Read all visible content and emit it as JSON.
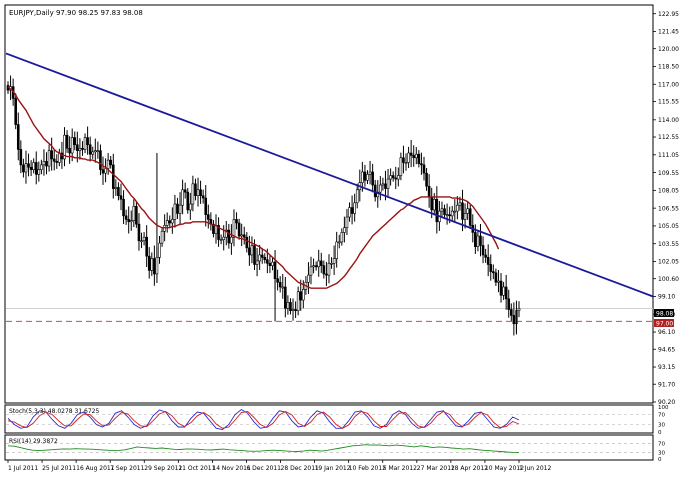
{
  "chart_data": [
    {
      "type": "candlestick",
      "title": "EURJPY,Daily  97.90 98.25 97.83 98.08",
      "price_ticks": [
        "122.95",
        "121.45",
        "120.00",
        "118.50",
        "117.00",
        "115.55",
        "114.00",
        "112.55",
        "111.05",
        "109.55",
        "108.05",
        "106.55",
        "105.05",
        "103.55",
        "102.05",
        "100.60",
        "99.10",
        "97.60",
        "96.10",
        "94.65",
        "93.15",
        "91.70",
        "90.20"
      ],
      "ylim": [
        90.2,
        123.6
      ],
      "date_ticks": [
        "1 Jul 2011",
        "25 Jul 2011",
        "16 Aug 2011",
        "7 Sep 2011",
        "29 Sep 2011",
        "21 Oct 2011",
        "14 Nov 2011",
        "6 Dec 2011",
        "28 Dec 2011",
        "19 Jan 2012",
        "10 Feb 2012",
        "5 Mar 2012",
        "27 Mar 2012",
        "18 Apr 2012",
        "10 May 2012",
        "1 Jun 2012"
      ],
      "current_price_label": "98.08",
      "current_price": 98.08,
      "support_label": "97.00",
      "support_level": 97.0,
      "close_series": [
        116.5,
        116.8,
        115.8,
        113.6,
        111.5,
        110.2,
        109.6,
        110.3,
        110.0,
        109.8,
        110.4,
        109.4,
        109.8,
        110.2,
        110.5,
        110.1,
        111.4,
        110.7,
        110.5,
        110.4,
        111.2,
        110.7,
        112.7,
        111.6,
        111.2,
        112.5,
        111.9,
        111.4,
        111.6,
        111.5,
        112.5,
        111.9,
        111.1,
        111.3,
        111.4,
        111.4,
        109.8,
        109.5,
        109.9,
        110.6,
        110.2,
        108.2,
        108.3,
        107.6,
        107.3,
        105.9,
        105.6,
        105.4,
        105.5,
        106.7,
        105.2,
        103.8,
        103.8,
        104.1,
        102.5,
        101.3,
        102.3,
        101.0,
        102.4,
        103.6,
        104.6,
        105.1,
        105.5,
        105.3,
        105.6,
        106.9,
        106.1,
        106.8,
        108.1,
        107.9,
        106.4,
        106.9,
        108.6,
        107.6,
        108.1,
        107.6,
        107.4,
        106.0,
        105.6,
        105.2,
        104.4,
        105.1,
        103.9,
        103.9,
        104.1,
        104.7,
        103.6,
        104.1,
        105.6,
        105.3,
        104.2,
        104.3,
        104.1,
        103.2,
        102.6,
        103.4,
        101.8,
        102.1,
        102.6,
        102.4,
        102.2,
        101.9,
        101.7,
        102.0,
        100.6,
        100.3,
        99.9,
        99.9,
        98.1,
        98.6,
        97.9,
        98.0,
        97.9,
        99.5,
        98.8,
        99.7,
        100.3,
        100.9,
        101.6,
        101.7,
        101.6,
        102.1,
        101.7,
        101.0,
        100.9,
        101.9,
        101.9,
        102.3,
        103.7,
        103.7,
        104.5,
        104.9,
        105.8,
        106.6,
        106.1,
        107.0,
        108.1,
        108.7,
        109.6,
        108.9,
        109.4,
        109.6,
        108.5,
        107.5,
        107.9,
        108.5,
        108.6,
        108.2,
        109.0,
        109.3,
        109.1,
        109.0,
        109.3,
        110.8,
        110.4,
        110.4,
        111.2,
        111.0,
        110.8,
        111.1,
        110.3,
        110.2,
        109.5,
        108.4,
        107.5,
        106.4,
        107.3,
        105.4,
        106.3,
        106.5,
        106.0,
        106.0,
        105.9,
        106.3,
        106.3,
        106.8,
        107.0,
        105.6,
        106.1,
        106.5,
        105.1,
        104.5,
        103.3,
        104.2,
        103.4,
        102.6,
        102.4,
        101.8,
        101.2,
        101.1,
        100.3,
        100.4,
        99.2,
        99.9,
        98.9,
        98.0,
        97.5,
        96.8,
        97.9,
        98.1
      ],
      "ma_series": [
        116.8,
        116.6,
        116.4,
        116.1,
        115.7,
        115.4,
        115.1,
        114.8,
        114.4,
        114.0,
        113.6,
        113.3,
        113.0,
        112.7,
        112.4,
        112.2,
        112.0,
        111.8,
        111.5,
        111.3,
        111.2,
        111.0,
        111.0,
        110.9,
        110.9,
        110.9,
        110.8,
        110.8,
        110.8,
        110.7,
        110.7,
        110.6,
        110.6,
        110.6,
        110.5,
        110.4,
        110.3,
        110.1,
        110.0,
        109.8,
        109.6,
        109.4,
        109.2,
        109.0,
        108.8,
        108.5,
        108.2,
        107.9,
        107.6,
        107.4,
        107.1,
        106.8,
        106.5,
        106.3,
        106.0,
        105.7,
        105.5,
        105.3,
        105.1,
        105.0,
        104.9,
        104.9,
        104.9,
        104.9,
        105.0,
        105.0,
        105.1,
        105.2,
        105.2,
        105.3,
        105.3,
        105.3,
        105.4,
        105.4,
        105.4,
        105.4,
        105.4,
        105.4,
        105.3,
        105.2,
        105.1,
        105.1,
        104.9,
        104.8,
        104.7,
        104.6,
        104.4,
        104.3,
        104.2,
        104.1,
        104.0,
        104.0,
        103.9,
        103.8,
        103.7,
        103.6,
        103.5,
        103.4,
        103.3,
        103.1,
        103.0,
        102.8,
        102.6,
        102.4,
        102.2,
        102.0,
        101.8,
        101.6,
        101.3,
        101.1,
        100.9,
        100.7,
        100.5,
        100.3,
        100.2,
        100.1,
        100.0,
        99.9,
        99.8,
        99.8,
        99.8,
        99.8,
        99.8,
        99.8,
        99.8,
        99.9,
        100.0,
        100.1,
        100.2,
        100.4,
        100.6,
        100.8,
        101.1,
        101.4,
        101.7,
        102.0,
        102.3,
        102.7,
        103.0,
        103.3,
        103.6,
        103.9,
        104.2,
        104.4,
        104.6,
        104.8,
        105.0,
        105.2,
        105.4,
        105.6,
        105.8,
        106.0,
        106.2,
        106.4,
        106.5,
        106.7,
        106.9,
        107.0,
        107.2,
        107.3,
        107.4,
        107.5,
        107.5,
        107.5,
        107.5,
        107.5,
        107.5,
        107.5,
        107.5,
        107.5,
        107.5,
        107.5,
        107.5,
        107.4,
        107.4,
        107.4,
        107.3,
        107.3,
        107.2,
        107.1,
        106.9,
        106.7,
        106.4,
        106.1,
        105.8,
        105.5,
        105.2,
        104.8,
        104.4,
        104.0,
        103.6,
        103.1
      ],
      "trendline": {
        "start": {
          "date": "1 Jul 2011",
          "price": 119.6
        },
        "end": {
          "date": "1 Jun 2012",
          "price": 99.1
        }
      }
    },
    {
      "type": "line",
      "title": "Stoch(5,3,3) 48.0278 31.6725",
      "levels": [
        "100",
        "70",
        "30",
        "0"
      ],
      "ylim": [
        0,
        100
      ],
      "series": [
        {
          "values": [
            55,
            30,
            15,
            20,
            60,
            85,
            80,
            50,
            25,
            15,
            35,
            70,
            80,
            60,
            30,
            20,
            35,
            75,
            85,
            60,
            30,
            15,
            25,
            65,
            88,
            80,
            45,
            20,
            20,
            55,
            80,
            75,
            45,
            15,
            10,
            30,
            70,
            90,
            75,
            40,
            15,
            20,
            55,
            85,
            80,
            45,
            20,
            25,
            60,
            85,
            75,
            40,
            15,
            15,
            45,
            80,
            85,
            60,
            25,
            15,
            30,
            70,
            85,
            70,
            35,
            15,
            20,
            50,
            80,
            85,
            55,
            25,
            20,
            45,
            75,
            80,
            50,
            20,
            15,
            30,
            60,
            48
          ]
        },
        {
          "values": [
            45,
            40,
            25,
            18,
            35,
            65,
            80,
            70,
            45,
            25,
            25,
            50,
            72,
            70,
            45,
            25,
            28,
            55,
            78,
            72,
            45,
            25,
            22,
            45,
            72,
            82,
            65,
            35,
            22,
            38,
            65,
            78,
            62,
            32,
            15,
            20,
            48,
            78,
            82,
            58,
            30,
            18,
            35,
            68,
            82,
            68,
            35,
            22,
            40,
            70,
            80,
            60,
            30,
            15,
            28,
            62,
            82,
            75,
            45,
            22,
            22,
            50,
            75,
            78,
            52,
            25,
            18,
            35,
            65,
            82,
            70,
            40,
            22,
            32,
            58,
            78,
            68,
            38,
            18,
            22,
            42,
            32
          ]
        }
      ]
    },
    {
      "type": "line",
      "title": "RSI(14) 29.3872",
      "levels": [
        "70",
        "30",
        "0"
      ],
      "ylim": [
        0,
        100
      ],
      "series": [
        {
          "values": [
            60,
            58,
            52,
            45,
            40,
            38,
            40,
            42,
            44,
            46,
            45,
            47,
            46,
            45,
            44,
            42,
            40,
            38,
            39,
            42,
            48,
            55,
            52,
            50,
            48,
            50,
            47,
            44,
            43,
            46,
            45,
            44,
            42,
            41,
            43,
            45,
            42,
            40,
            38,
            36,
            35,
            36,
            38,
            40,
            39,
            37,
            35,
            34,
            36,
            40,
            38,
            36,
            40,
            45,
            50,
            55,
            60,
            62,
            65,
            63,
            64,
            62,
            60,
            63,
            61,
            58,
            55,
            60,
            57,
            52,
            55,
            53,
            50,
            48,
            45,
            47,
            43,
            40,
            38,
            36,
            34,
            32,
            30,
            29
          ]
        }
      ]
    }
  ]
}
